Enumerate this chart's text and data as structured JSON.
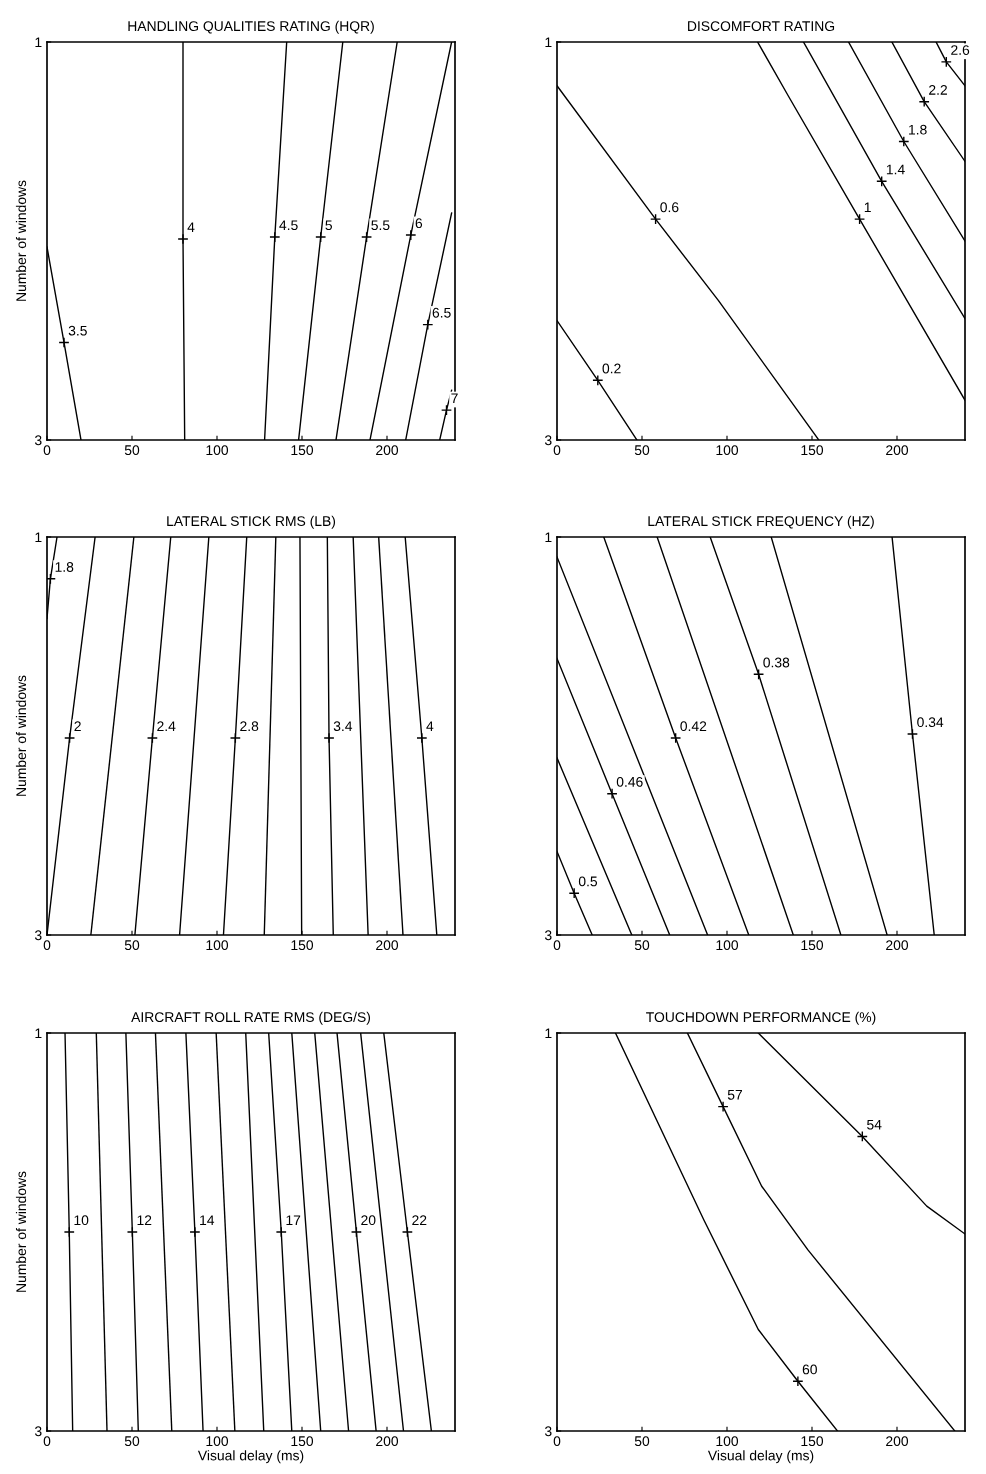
{
  "chart_data": [
    {
      "type": "line",
      "title": "HANDLING QUALITIES RATING (HQR)",
      "ylabel": "Number of windows",
      "xlim": [
        0,
        240
      ],
      "xticks": [
        0,
        50,
        100,
        150,
        200
      ],
      "ylim": [
        3,
        1
      ],
      "yticks": [
        1,
        3
      ],
      "series": [
        {
          "color": "#000000",
          "x": [
            0,
            10,
            20
          ],
          "values": [
            2.03,
            2.51,
            3
          ]
        },
        {
          "color": "#000000",
          "x": [
            80,
            80,
            81
          ],
          "values": [
            1,
            1.99,
            3
          ]
        },
        {
          "color": "#000000",
          "x": [
            141,
            134,
            128
          ],
          "values": [
            1,
            1.98,
            3
          ]
        },
        {
          "color": "#000000",
          "x": [
            174,
            161,
            148
          ],
          "values": [
            1,
            1.98,
            3
          ]
        },
        {
          "color": "#000000",
          "x": [
            206,
            188,
            170
          ],
          "values": [
            1,
            1.98,
            3
          ]
        },
        {
          "color": "#000000",
          "x": [
            238,
            214,
            190
          ],
          "values": [
            1,
            1.97,
            3
          ]
        },
        {
          "color": "#000000",
          "x": [
            238,
            224,
            211
          ],
          "values": [
            1.86,
            2.42,
            3
          ]
        },
        {
          "color": "#000000",
          "x": [
            238,
            235,
            231
          ],
          "values": [
            2.75,
            2.85,
            3
          ]
        }
      ],
      "annotations": [
        {
          "text": "3.5",
          "x": 10,
          "y": 2.51
        },
        {
          "text": "4",
          "x": 80,
          "y": 1.99
        },
        {
          "text": "4.5",
          "x": 134,
          "y": 1.98
        },
        {
          "text": "5",
          "x": 161,
          "y": 1.98
        },
        {
          "text": "5.5",
          "x": 188,
          "y": 1.98
        },
        {
          "text": "6",
          "x": 214,
          "y": 1.97
        },
        {
          "text": "6.5",
          "x": 224,
          "y": 2.42
        },
        {
          "text": "7",
          "x": 235,
          "y": 2.85
        }
      ]
    },
    {
      "type": "line",
      "title": "DISCOMFORT RATING",
      "xlim": [
        0,
        240
      ],
      "xticks": [
        0,
        50,
        100,
        150,
        200
      ],
      "ylim": [
        3,
        1
      ],
      "yticks": [
        1,
        3
      ],
      "series": [
        {
          "color": "#000000",
          "x": [
            0,
            24,
            47
          ],
          "values": [
            2.4,
            2.7,
            3
          ]
        },
        {
          "color": "#000000",
          "x": [
            0,
            58,
            95,
            154
          ],
          "values": [
            1.22,
            1.89,
            2.3,
            3
          ]
        },
        {
          "color": "#000000",
          "x": [
            118,
            136,
            178,
            240
          ],
          "values": [
            1,
            1.27,
            1.89,
            2.8
          ]
        },
        {
          "color": "#000000",
          "x": [
            145,
            191,
            240
          ],
          "values": [
            1,
            1.7,
            2.39
          ]
        },
        {
          "color": "#000000",
          "x": [
            171.5,
            204,
            240
          ],
          "values": [
            1,
            1.5,
            2.0
          ]
        },
        {
          "color": "#000000",
          "x": [
            197,
            216,
            240
          ],
          "values": [
            1,
            1.3,
            1.6
          ]
        },
        {
          "color": "#000000",
          "x": [
            223,
            229,
            240
          ],
          "values": [
            1,
            1.1,
            1.22
          ]
        }
      ],
      "annotations": [
        {
          "text": "0.2",
          "x": 24,
          "y": 2.7
        },
        {
          "text": "0.6",
          "x": 58,
          "y": 1.89
        },
        {
          "text": "1",
          "x": 178,
          "y": 1.89
        },
        {
          "text": "1.4",
          "x": 191,
          "y": 1.7
        },
        {
          "text": "1.8",
          "x": 204,
          "y": 1.5
        },
        {
          "text": "2.2",
          "x": 216,
          "y": 1.3
        },
        {
          "text": "2.6",
          "x": 229,
          "y": 1.1
        }
      ]
    },
    {
      "type": "line",
      "title": "LATERAL STICK RMS (LB)",
      "ylabel": "Number of windows",
      "xlim": [
        0,
        240
      ],
      "xticks": [
        0,
        50,
        100,
        150,
        200
      ],
      "ylim": [
        3,
        1
      ],
      "yticks": [
        1,
        3
      ],
      "series": [
        {
          "color": "#000000",
          "x": [
            5.9,
            2,
            0
          ],
          "values": [
            1,
            1.21,
            1.41
          ]
        },
        {
          "color": "#000000",
          "x": [
            28.3,
            13.3,
            0
          ],
          "values": [
            1,
            2.01,
            3
          ]
        },
        {
          "color": "#000000",
          "x": [
            51.1,
            25.8
          ],
          "values": [
            1,
            3
          ]
        },
        {
          "color": "#000000",
          "x": [
            72.8,
            62,
            51.7
          ],
          "values": [
            1,
            2.01,
            3
          ]
        },
        {
          "color": "#000000",
          "x": [
            95.2,
            78
          ],
          "values": [
            1,
            3
          ]
        },
        {
          "color": "#000000",
          "x": [
            117.5,
            110.8,
            103.8
          ],
          "values": [
            1,
            2.01,
            3
          ]
        },
        {
          "color": "#000000",
          "x": [
            134.6,
            127.8
          ],
          "values": [
            1,
            3
          ]
        },
        {
          "color": "#000000",
          "x": [
            148.8,
            149.8
          ],
          "values": [
            1,
            3
          ]
        },
        {
          "color": "#000000",
          "x": [
            164.9,
            165.9,
            168.4
          ],
          "values": [
            1,
            2.01,
            3
          ]
        },
        {
          "color": "#000000",
          "x": [
            180.1,
            188.9
          ],
          "values": [
            1,
            3
          ]
        },
        {
          "color": "#000000",
          "x": [
            195.1,
            209.4
          ],
          "values": [
            1,
            3
          ]
        },
        {
          "color": "#000000",
          "x": [
            210.7,
            220.5,
            229.3
          ],
          "values": [
            1,
            2.01,
            3
          ]
        }
      ],
      "annotations": [
        {
          "text": "1.8",
          "x": 2,
          "y": 1.21
        },
        {
          "text": "2",
          "x": 13.3,
          "y": 2.01
        },
        {
          "text": "2.4",
          "x": 62,
          "y": 2.01
        },
        {
          "text": "2.8",
          "x": 110.8,
          "y": 2.01
        },
        {
          "text": "3.4",
          "x": 165.9,
          "y": 2.01
        },
        {
          "text": "4",
          "x": 220.5,
          "y": 2.01
        }
      ]
    },
    {
      "type": "line",
      "title": "LATERAL STICK FREQUENCY (HZ)",
      "xlim": [
        0,
        240
      ],
      "xticks": [
        0,
        50,
        100,
        150,
        200
      ],
      "ylim": [
        3,
        1
      ],
      "yticks": [
        1,
        3
      ],
      "series": [
        {
          "color": "#000000",
          "x": [
            0,
            10.1,
            20.7
          ],
          "values": [
            2.58,
            2.79,
            3
          ]
        },
        {
          "color": "#000000",
          "x": [
            0,
            44
          ],
          "values": [
            2.11,
            3
          ]
        },
        {
          "color": "#000000",
          "x": [
            0,
            32.4,
            66.3
          ],
          "values": [
            1.61,
            2.29,
            3
          ]
        },
        {
          "color": "#000000",
          "x": [
            0,
            88.6
          ],
          "values": [
            1.1,
            3
          ]
        },
        {
          "color": "#000000",
          "x": [
            27.5,
            69.8,
            112.8
          ],
          "values": [
            1,
            2.01,
            3
          ]
        },
        {
          "color": "#000000",
          "x": [
            58.9,
            139
          ],
          "values": [
            1,
            3
          ]
        },
        {
          "color": "#000000",
          "x": [
            90.1,
            118.6,
            167
          ],
          "values": [
            1,
            1.69,
            3
          ]
        },
        {
          "color": "#000000",
          "x": [
            126,
            194.2
          ],
          "values": [
            1,
            3
          ]
        },
        {
          "color": "#000000",
          "x": [
            197.1,
            209.1,
            221.9
          ],
          "values": [
            1,
            1.99,
            3
          ]
        }
      ],
      "annotations": [
        {
          "text": "0.5",
          "x": 10.1,
          "y": 2.79
        },
        {
          "text": "0.46",
          "x": 32.4,
          "y": 2.29
        },
        {
          "text": "0.42",
          "x": 69.8,
          "y": 2.01
        },
        {
          "text": "0.38",
          "x": 118.6,
          "y": 1.69
        },
        {
          "text": "0.34",
          "x": 209.1,
          "y": 1.99
        }
      ]
    },
    {
      "type": "line",
      "title": "AIRCRAFT ROLL RATE RMS (DEG/S)",
      "xlabel": "Visual delay (ms)",
      "ylabel": "Number of windows",
      "xlim": [
        0,
        240
      ],
      "xticks": [
        0,
        50,
        100,
        150,
        200
      ],
      "ylim": [
        3,
        1
      ],
      "yticks": [
        1,
        3
      ],
      "series": [
        {
          "color": "#000000",
          "x": [
            10.6,
            13.1,
            15.1
          ],
          "values": [
            1,
            2.0,
            3
          ]
        },
        {
          "color": "#000000",
          "x": [
            29,
            35.3
          ],
          "values": [
            1,
            3
          ]
        },
        {
          "color": "#000000",
          "x": [
            46.4,
            50.2,
            53.7
          ],
          "values": [
            1,
            2.0,
            3
          ]
        },
        {
          "color": "#000000",
          "x": [
            63.8,
            73.4
          ],
          "values": [
            1,
            3
          ]
        },
        {
          "color": "#000000",
          "x": [
            81.7,
            87,
            91.8
          ],
          "values": [
            1,
            2.0,
            3
          ]
        },
        {
          "color": "#000000",
          "x": [
            99.5,
            110.5
          ],
          "values": [
            1,
            3
          ]
        },
        {
          "color": "#000000",
          "x": [
            116.9,
            127.5
          ],
          "values": [
            1,
            3
          ]
        },
        {
          "color": "#000000",
          "x": [
            130.4,
            137.8,
            144
          ],
          "values": [
            1,
            2.0,
            3
          ]
        },
        {
          "color": "#000000",
          "x": [
            144,
            161
          ],
          "values": [
            1,
            3
          ]
        },
        {
          "color": "#000000",
          "x": [
            157.5,
            177.4
          ],
          "values": [
            1,
            3
          ]
        },
        {
          "color": "#000000",
          "x": [
            170.6,
            182,
            193.6
          ],
          "values": [
            1,
            2.0,
            3
          ]
        },
        {
          "color": "#000000",
          "x": [
            184.5,
            209.7
          ],
          "values": [
            1,
            3
          ]
        },
        {
          "color": "#000000",
          "x": [
            198.1,
            212,
            226.1
          ],
          "values": [
            1,
            2.0,
            3
          ]
        }
      ],
      "annotations": [
        {
          "text": "10",
          "x": 13.1,
          "y": 2.0
        },
        {
          "text": "12",
          "x": 50.2,
          "y": 2.0
        },
        {
          "text": "14",
          "x": 87,
          "y": 2.0
        },
        {
          "text": "17",
          "x": 137.8,
          "y": 2.0
        },
        {
          "text": "20",
          "x": 182,
          "y": 2.0
        },
        {
          "text": "22",
          "x": 212,
          "y": 2.0
        }
      ]
    },
    {
      "type": "line",
      "title": "TOUCHDOWN PERFORMANCE (%)",
      "xlabel": "Visual delay (ms)",
      "xlim": [
        0,
        240
      ],
      "xticks": [
        0,
        50,
        100,
        150,
        200
      ],
      "ylim": [
        3,
        1
      ],
      "yticks": [
        1,
        3
      ],
      "series": [
        {
          "color": "#000000",
          "x": [
            34.4,
            86.4,
            118.4,
            141.7,
            165
          ],
          "values": [
            1,
            1.94,
            2.49,
            2.75,
            3
          ]
        },
        {
          "color": "#000000",
          "x": [
            76.7,
            97.7,
            120.4,
            147.6,
            234
          ],
          "values": [
            1,
            1.37,
            1.77,
            2.09,
            3
          ]
        },
        {
          "color": "#000000",
          "x": [
            118.4,
            179.6,
            217.5,
            240
          ],
          "values": [
            1,
            1.52,
            1.87,
            2.01
          ]
        }
      ],
      "annotations": [
        {
          "text": "60",
          "x": 141.7,
          "y": 2.75
        },
        {
          "text": "57",
          "x": 97.7,
          "y": 1.37
        },
        {
          "text": "54",
          "x": 179.6,
          "y": 1.52
        }
      ]
    }
  ]
}
